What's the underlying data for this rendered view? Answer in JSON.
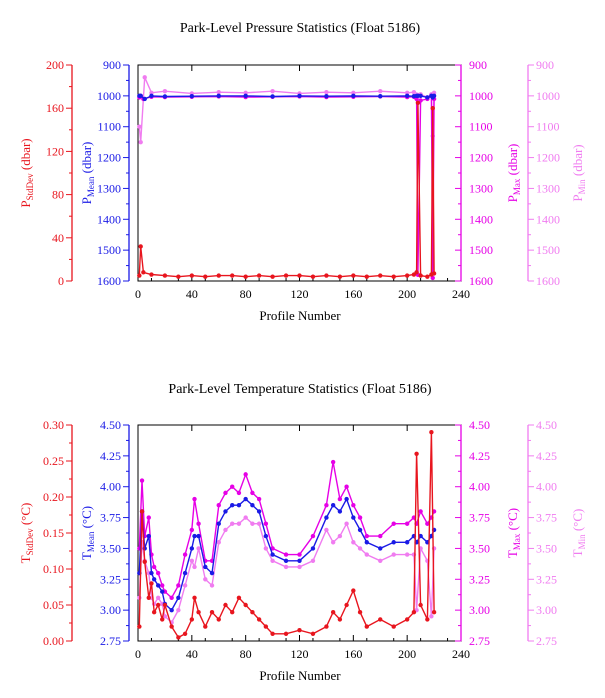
{
  "colors": {
    "stddev": "#e8151e",
    "mean": "#1a1ae6",
    "max": "#e600e6",
    "min": "#f07cf0",
    "axis": "#000000"
  },
  "chart_data": [
    {
      "type": "line",
      "title": "Park-Level Pressure Statistics (Float 5186)",
      "xlabel": "Profile Number",
      "xlim": [
        0,
        240
      ],
      "x_ticks": [
        "0",
        "40",
        "80",
        "120",
        "160",
        "200",
        "240"
      ],
      "axes": {
        "stddev": {
          "label": "P",
          "sub": "StdDev",
          "unit": " (dbar)",
          "ticks": [
            "0",
            "40",
            "80",
            "120",
            "160",
            "200"
          ],
          "range": [
            0,
            200
          ]
        },
        "mean": {
          "label": "P",
          "sub": "Mean",
          "unit": " (dbar)",
          "ticks": [
            "900",
            "1000",
            "1100",
            "1200",
            "1300",
            "1400",
            "1500",
            "1600"
          ],
          "range": [
            900,
            1600
          ],
          "inverted": true
        },
        "max": {
          "label": "P",
          "sub": "Max",
          "unit": " (dbar)",
          "ticks": [
            "900",
            "1000",
            "1100",
            "1200",
            "1300",
            "1400",
            "1500",
            "1600"
          ],
          "range": [
            900,
            1600
          ],
          "inverted": true
        },
        "min": {
          "label": "P",
          "sub": "Min",
          "unit": " (dbar)",
          "ticks": [
            "900",
            "1000",
            "1100",
            "1200",
            "1300",
            "1400",
            "1500",
            "1600"
          ],
          "range": [
            900,
            1600
          ],
          "inverted": true
        }
      },
      "series": [
        {
          "key": "stddev",
          "x": [
            1,
            2,
            4,
            10,
            20,
            30,
            40,
            50,
            60,
            70,
            80,
            90,
            100,
            110,
            120,
            130,
            140,
            150,
            160,
            170,
            180,
            190,
            200,
            205,
            207,
            208,
            210,
            215,
            218,
            219,
            220
          ],
          "values": [
            5,
            32,
            8,
            6,
            5,
            4,
            5,
            4,
            5,
            5,
            4,
            5,
            4,
            5,
            5,
            4,
            5,
            4,
            5,
            4,
            5,
            4,
            5,
            6,
            8,
            165,
            5,
            4,
            6,
            160,
            7
          ]
        },
        {
          "key": "mean",
          "x": [
            1,
            2,
            5,
            10,
            20,
            40,
            60,
            80,
            100,
            120,
            140,
            160,
            180,
            200,
            205,
            207,
            208,
            210,
            215,
            218,
            219,
            220
          ],
          "values": [
            1000,
            1000,
            1010,
            1000,
            1002,
            1001,
            1000,
            1000,
            1002,
            1000,
            1001,
            1000,
            1001,
            1000,
            1001,
            1000,
            1000,
            1000,
            1005,
            1000,
            1005,
            1000
          ]
        },
        {
          "key": "max",
          "x": [
            1,
            2,
            4,
            10,
            20,
            40,
            60,
            80,
            100,
            120,
            140,
            160,
            180,
            200,
            205,
            207,
            208,
            210,
            215,
            218,
            219,
            220
          ],
          "values": [
            1005,
            1000,
            1010,
            1003,
            1004,
            1003,
            1002,
            1004,
            1003,
            1002,
            1004,
            1003,
            1002,
            1004,
            1003,
            1010,
            1580,
            1015,
            1010,
            1000,
            1590,
            1010
          ]
        },
        {
          "key": "min",
          "x": [
            1,
            2,
            5,
            10,
            20,
            40,
            60,
            80,
            100,
            120,
            140,
            160,
            180,
            200,
            205,
            210,
            215,
            218,
            219,
            220
          ],
          "values": [
            1100,
            1150,
            940,
            990,
            985,
            992,
            988,
            990,
            985,
            992,
            988,
            990,
            985,
            990,
            988,
            995,
            1005,
            995,
            1130,
            990
          ]
        }
      ]
    },
    {
      "type": "line",
      "title": "Park-Level Temperature Statistics (Float 5186)",
      "xlabel": "Profile Number",
      "xlim": [
        0,
        240
      ],
      "x_ticks": [
        "0",
        "40",
        "80",
        "120",
        "160",
        "200",
        "240"
      ],
      "axes": {
        "stddev": {
          "label": "T",
          "sub": "StdDev",
          "unit": " (°C)",
          "ticks": [
            "0.00",
            "0.05",
            "0.10",
            "0.15",
            "0.20",
            "0.25",
            "0.30"
          ],
          "range": [
            0,
            0.3
          ]
        },
        "mean": {
          "label": "T",
          "sub": "Mean",
          "unit": " (°C)",
          "ticks": [
            "2.75",
            "3.00",
            "3.25",
            "3.50",
            "3.75",
            "4.00",
            "4.25",
            "4.50"
          ],
          "range": [
            2.75,
            4.5
          ]
        },
        "max": {
          "label": "T",
          "sub": "Max",
          "unit": " (°C)",
          "ticks": [
            "2.75",
            "3.00",
            "3.25",
            "3.50",
            "3.75",
            "4.00",
            "4.25",
            "4.50"
          ],
          "range": [
            2.75,
            4.5
          ]
        },
        "min": {
          "label": "T",
          "sub": "Min",
          "unit": " (°C)",
          "ticks": [
            "2.75",
            "3.00",
            "3.25",
            "3.50",
            "3.75",
            "4.00",
            "4.25",
            "4.50"
          ],
          "range": [
            2.75,
            4.5
          ]
        }
      },
      "series": [
        {
          "key": "stddev",
          "x": [
            1,
            3,
            5,
            8,
            10,
            12,
            15,
            18,
            20,
            25,
            30,
            35,
            40,
            42,
            45,
            50,
            55,
            60,
            65,
            70,
            75,
            80,
            85,
            90,
            95,
            100,
            110,
            120,
            130,
            140,
            145,
            150,
            155,
            160,
            165,
            170,
            180,
            190,
            200,
            205,
            207,
            210,
            215,
            218,
            220
          ],
          "values": [
            0.02,
            0.18,
            0.11,
            0.06,
            0.08,
            0.04,
            0.05,
            0.03,
            0.05,
            0.02,
            0.005,
            0.01,
            0.03,
            0.06,
            0.04,
            0.02,
            0.04,
            0.03,
            0.05,
            0.04,
            0.06,
            0.05,
            0.04,
            0.03,
            0.02,
            0.01,
            0.01,
            0.015,
            0.01,
            0.02,
            0.04,
            0.03,
            0.05,
            0.07,
            0.04,
            0.02,
            0.03,
            0.02,
            0.03,
            0.04,
            0.26,
            0.05,
            0.03,
            0.29,
            0.04
          ]
        },
        {
          "key": "mean",
          "x": [
            1,
            3,
            5,
            8,
            10,
            12,
            15,
            18,
            20,
            25,
            30,
            35,
            40,
            42,
            45,
            50,
            55,
            60,
            65,
            70,
            75,
            80,
            85,
            90,
            95,
            100,
            110,
            120,
            130,
            140,
            145,
            150,
            155,
            160,
            165,
            170,
            180,
            190,
            200,
            205,
            207,
            210,
            215,
            218,
            220
          ],
          "values": [
            3.3,
            3.8,
            3.5,
            3.6,
            3.3,
            3.25,
            3.2,
            3.15,
            3.05,
            3.0,
            3.1,
            3.3,
            3.5,
            3.6,
            3.6,
            3.35,
            3.3,
            3.7,
            3.8,
            3.85,
            3.85,
            3.9,
            3.85,
            3.8,
            3.6,
            3.45,
            3.4,
            3.4,
            3.5,
            3.75,
            3.85,
            3.8,
            3.9,
            3.75,
            3.65,
            3.55,
            3.5,
            3.55,
            3.55,
            3.6,
            3.55,
            3.6,
            3.55,
            3.6,
            3.65
          ]
        },
        {
          "key": "max",
          "x": [
            1,
            3,
            5,
            8,
            10,
            12,
            15,
            18,
            20,
            25,
            30,
            35,
            40,
            42,
            45,
            50,
            55,
            60,
            65,
            70,
            75,
            80,
            85,
            90,
            95,
            100,
            110,
            120,
            130,
            140,
            145,
            150,
            155,
            160,
            165,
            170,
            180,
            190,
            200,
            205,
            207,
            210,
            215,
            218,
            220
          ],
          "values": [
            3.5,
            4.05,
            3.6,
            3.75,
            3.45,
            3.35,
            3.3,
            3.2,
            3.15,
            3.1,
            3.2,
            3.45,
            3.65,
            3.9,
            3.7,
            3.4,
            3.4,
            3.85,
            3.95,
            4.0,
            3.95,
            4.1,
            3.95,
            3.9,
            3.7,
            3.5,
            3.45,
            3.45,
            3.6,
            3.85,
            4.2,
            3.9,
            4.0,
            3.85,
            3.75,
            3.6,
            3.6,
            3.7,
            3.7,
            3.75,
            3.7,
            3.8,
            3.7,
            3.75,
            3.8
          ]
        },
        {
          "key": "min",
          "x": [
            1,
            3,
            5,
            8,
            10,
            12,
            15,
            18,
            20,
            25,
            30,
            35,
            40,
            42,
            45,
            50,
            55,
            60,
            65,
            70,
            75,
            80,
            85,
            90,
            95,
            100,
            110,
            120,
            130,
            140,
            145,
            150,
            155,
            160,
            165,
            170,
            180,
            190,
            200,
            205,
            207,
            210,
            215,
            218,
            220
          ],
          "values": [
            3.1,
            3.55,
            3.4,
            3.3,
            3.1,
            3.05,
            3.1,
            3.05,
            2.95,
            2.9,
            3.0,
            3.2,
            3.4,
            3.35,
            3.5,
            3.25,
            3.2,
            3.55,
            3.65,
            3.7,
            3.7,
            3.75,
            3.7,
            3.7,
            3.5,
            3.4,
            3.35,
            3.35,
            3.4,
            3.65,
            3.55,
            3.6,
            3.7,
            3.55,
            3.5,
            3.45,
            3.4,
            3.45,
            3.45,
            3.45,
            3.0,
            3.5,
            3.4,
            2.95,
            3.5
          ]
        }
      ]
    }
  ]
}
